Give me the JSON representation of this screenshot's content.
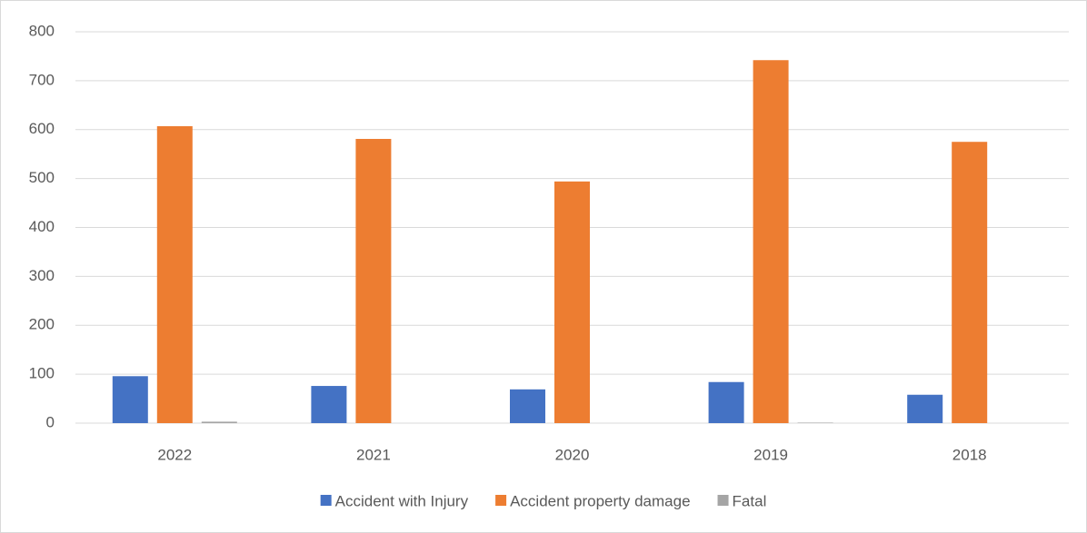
{
  "chart_data": {
    "type": "bar",
    "categories": [
      "2022",
      "2021",
      "2020",
      "2019",
      "2018"
    ],
    "series": [
      {
        "name": "Accident with Injury",
        "color": "#4472c4",
        "values": [
          96,
          76,
          69,
          84,
          58
        ]
      },
      {
        "name": "Accident property damage",
        "color": "#ed7d31",
        "values": [
          607,
          581,
          494,
          742,
          575
        ]
      },
      {
        "name": "Fatal",
        "color": "#a5a5a5",
        "values": [
          3,
          0,
          0,
          1,
          0
        ]
      }
    ],
    "ylim": [
      0,
      800
    ],
    "yticks": [
      0,
      100,
      200,
      300,
      400,
      500,
      600,
      700,
      800
    ],
    "grid": true,
    "legend": "bottom"
  }
}
